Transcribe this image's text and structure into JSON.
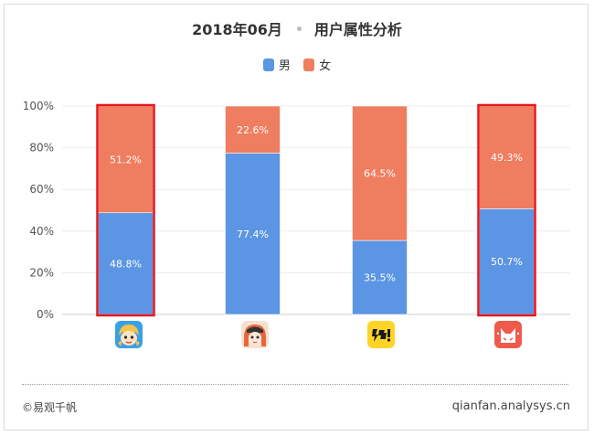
{
  "title": {
    "date": "2018年06月",
    "subject": "用户属性分析"
  },
  "footer": {
    "copyright": "©易观千帆",
    "site": "qianfan.analysys.cn"
  },
  "colors": {
    "male": "#5b95e3",
    "female": "#ef7d5f",
    "highlight": "#e8141c",
    "grid": "#ececec"
  },
  "apps": [
    {
      "icon": "blonde-cartoon-app-icon",
      "highlighted": true
    },
    {
      "icon": "orange-hair-cartoon-app-icon",
      "highlighted": false
    },
    {
      "icon": "kuaikan-yellow-app-icon",
      "highlighted": false
    },
    {
      "icon": "red-cat-app-icon",
      "highlighted": true
    }
  ],
  "chart_data": {
    "type": "bar",
    "stacked": true,
    "categories": [
      "",
      "",
      "",
      ""
    ],
    "series": [
      {
        "name": "男",
        "values": [
          48.8,
          77.4,
          35.5,
          50.7
        ],
        "labels": [
          "48.8%",
          "77.4%",
          "35.5%",
          "50.7%"
        ]
      },
      {
        "name": "女",
        "values": [
          51.2,
          22.6,
          64.5,
          49.3
        ],
        "labels": [
          "51.2%",
          "22.6%",
          "64.5%",
          "49.3%"
        ]
      }
    ],
    "yticks": [
      "0%",
      "20%",
      "40%",
      "60%",
      "80%",
      "100%"
    ],
    "ylim": [
      0,
      100
    ],
    "legend": "top-center",
    "grid": true
  }
}
